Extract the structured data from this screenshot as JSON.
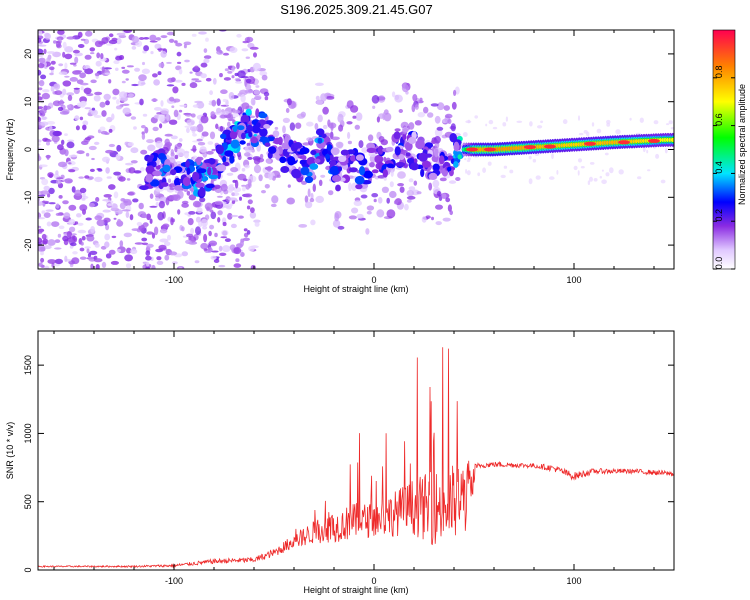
{
  "title": "S196.2025.309.21.45.G07",
  "chart_data": [
    {
      "type": "heatmap",
      "name": "spectrogram",
      "xlabel": "Height of straight line (km)",
      "ylabel": "Frequency (Hz)",
      "xlim": [
        -168,
        150
      ],
      "ylim": [
        -25,
        25
      ],
      "xticks": [
        -100,
        0,
        100
      ],
      "yticks": [
        -20,
        -10,
        0,
        10,
        20
      ],
      "colorbar": {
        "label": "Normalized spectral amplitude",
        "range": [
          0,
          1
        ],
        "ticks": [
          "0.0",
          "0.2",
          "0.4",
          "0.6",
          "0.8"
        ],
        "tick_values": [
          0,
          0.2,
          0.4,
          0.6,
          0.8
        ]
      },
      "ridge": {
        "description": "dominant frequency track",
        "x": [
          -115,
          -105,
          -95,
          -85,
          -78,
          -70,
          -62,
          -55,
          -48,
          -40,
          -32,
          -25,
          -18,
          -12,
          -5,
          0,
          8,
          15,
          25,
          35,
          42,
          50,
          60,
          80,
          100,
          120,
          145
        ],
        "y": [
          -5,
          -4,
          -5,
          -6,
          -2,
          2,
          5,
          4,
          0,
          -2,
          -4,
          3,
          -5,
          -2,
          -6,
          -1,
          -2,
          1,
          -2,
          -3,
          0,
          0,
          0,
          0.5,
          1,
          1.5,
          2
        ],
        "amp": [
          0.2,
          0.25,
          0.25,
          0.3,
          0.25,
          0.3,
          0.3,
          0.25,
          0.2,
          0.2,
          0.25,
          0.3,
          0.2,
          0.2,
          0.25,
          0.15,
          0.25,
          0.2,
          0.2,
          0.2,
          0.3,
          0.9,
          0.95,
          0.9,
          0.85,
          0.9,
          0.8
        ]
      }
    },
    {
      "type": "line",
      "name": "snr",
      "xlabel": "Height of straight line (km)",
      "ylabel": "SNR (10 * v/v)",
      "xlim": [
        -168,
        150
      ],
      "ylim": [
        0,
        1750
      ],
      "xticks": [
        -100,
        0,
        100
      ],
      "yticks": [
        0,
        500,
        1000,
        1500
      ],
      "color": "#ee2a2a",
      "envelope": {
        "x": [
          -168,
          -120,
          -100,
          -80,
          -60,
          -50,
          -40,
          -30,
          -20,
          -10,
          0,
          10,
          20,
          30,
          40,
          45,
          52,
          60,
          80,
          90,
          100,
          110,
          130,
          150
        ],
        "mean": [
          25,
          25,
          30,
          60,
          70,
          120,
          200,
          260,
          290,
          330,
          340,
          380,
          420,
          400,
          420,
          450,
          760,
          770,
          760,
          740,
          680,
          720,
          720,
          700
        ],
        "spread": [
          10,
          12,
          20,
          35,
          40,
          60,
          110,
          170,
          220,
          270,
          250,
          330,
          420,
          550,
          600,
          580,
          40,
          40,
          35,
          50,
          60,
          40,
          35,
          40
        ]
      }
    }
  ]
}
